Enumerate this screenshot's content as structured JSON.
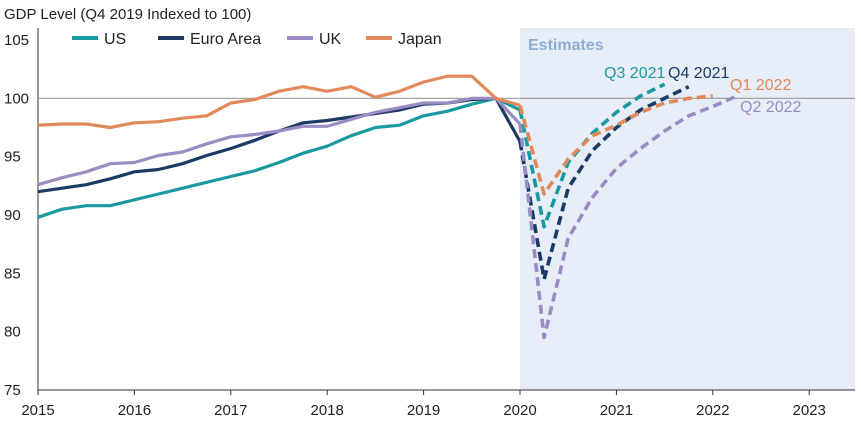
{
  "chart_data": {
    "type": "line",
    "ylabel": "GDP Level (Q4 2019 Indexed to 100)",
    "ylim": [
      75,
      105
    ],
    "yticks": [
      75,
      80,
      85,
      90,
      95,
      100,
      105
    ],
    "xlim": [
      2015,
      2023.5
    ],
    "xticks": [
      "2015",
      "2016",
      "2017",
      "2018",
      "2019",
      "2020",
      "2021",
      "2022",
      "2023"
    ],
    "reference_line": 100,
    "grid": false,
    "legend_position": "top-left",
    "shaded_region": {
      "label": "Estimates",
      "x_start": 2020,
      "x_end": 2023.5,
      "color": "#e6edf6",
      "label_color": "#8eb0d6"
    },
    "series": [
      {
        "name": "US",
        "color": "#1a9aa0",
        "historical": {
          "x": [
            2015.0,
            2015.25,
            2015.5,
            2015.75,
            2016.0,
            2016.25,
            2016.5,
            2016.75,
            2017.0,
            2017.25,
            2017.5,
            2017.75,
            2018.0,
            2018.25,
            2018.5,
            2018.75,
            2019.0,
            2019.25,
            2019.5,
            2019.75,
            2020.0
          ],
          "y": [
            89.8,
            90.5,
            90.8,
            90.8,
            91.3,
            91.8,
            92.3,
            92.8,
            93.3,
            93.8,
            94.5,
            95.3,
            95.9,
            96.8,
            97.5,
            97.7,
            98.5,
            98.9,
            99.5,
            100.0,
            99.0
          ]
        },
        "estimate": {
          "x": [
            2020.0,
            2020.25,
            2020.5,
            2020.75,
            2021.0,
            2021.25,
            2021.5
          ],
          "y": [
            99.0,
            89.0,
            94.5,
            97.0,
            98.8,
            100.2,
            101.2
          ]
        },
        "annotation": "Q3 2021"
      },
      {
        "name": "Euro Area",
        "color": "#1b3a64",
        "historical": {
          "x": [
            2015.0,
            2015.25,
            2015.5,
            2015.75,
            2016.0,
            2016.25,
            2016.5,
            2016.75,
            2017.0,
            2017.25,
            2017.5,
            2017.75,
            2018.0,
            2018.25,
            2018.5,
            2018.75,
            2019.0,
            2019.25,
            2019.5,
            2019.75,
            2020.0
          ],
          "y": [
            92.0,
            92.3,
            92.6,
            93.1,
            93.7,
            93.9,
            94.4,
            95.1,
            95.7,
            96.4,
            97.2,
            97.9,
            98.1,
            98.4,
            98.7,
            99.0,
            99.5,
            99.6,
            99.9,
            100.0,
            96.3
          ]
        },
        "estimate": {
          "x": [
            2020.0,
            2020.25,
            2020.5,
            2020.75,
            2021.0,
            2021.25,
            2021.5,
            2021.75
          ],
          "y": [
            96.3,
            84.5,
            92.3,
            95.5,
            97.5,
            99.0,
            100.0,
            101.0
          ]
        },
        "annotation": "Q4 2021"
      },
      {
        "name": "UK",
        "color": "#9b8cc4",
        "historical": {
          "x": [
            2015.0,
            2015.25,
            2015.5,
            2015.75,
            2016.0,
            2016.25,
            2016.5,
            2016.75,
            2017.0,
            2017.25,
            2017.5,
            2017.75,
            2018.0,
            2018.25,
            2018.5,
            2018.75,
            2019.0,
            2019.25,
            2019.5,
            2019.75,
            2020.0
          ],
          "y": [
            92.6,
            93.2,
            93.7,
            94.4,
            94.5,
            95.1,
            95.4,
            96.1,
            96.7,
            96.9,
            97.2,
            97.6,
            97.6,
            98.2,
            98.8,
            99.2,
            99.6,
            99.6,
            100.0,
            100.0,
            97.8
          ]
        },
        "estimate": {
          "x": [
            2020.0,
            2020.25,
            2020.5,
            2020.75,
            2021.0,
            2021.25,
            2021.5,
            2021.75,
            2022.0,
            2022.25
          ],
          "y": [
            97.8,
            79.5,
            88.0,
            91.5,
            94.0,
            95.7,
            97.2,
            98.5,
            99.3,
            100.2
          ]
        },
        "annotation": "Q2 2022"
      },
      {
        "name": "Japan",
        "color": "#e08a5c",
        "historical": {
          "x": [
            2015.0,
            2015.25,
            2015.5,
            2015.75,
            2016.0,
            2016.25,
            2016.5,
            2016.75,
            2017.0,
            2017.25,
            2017.5,
            2017.75,
            2018.0,
            2018.25,
            2018.5,
            2018.75,
            2019.0,
            2019.25,
            2019.5,
            2019.75,
            2020.0
          ],
          "y": [
            97.7,
            97.8,
            97.8,
            97.5,
            97.9,
            98.0,
            98.3,
            98.5,
            99.6,
            99.9,
            100.6,
            101.0,
            100.6,
            101.0,
            100.1,
            100.6,
            101.4,
            101.9,
            101.9,
            100.0,
            99.4
          ]
        },
        "estimate": {
          "x": [
            2020.0,
            2020.25,
            2020.5,
            2020.75,
            2021.0,
            2021.25,
            2021.5,
            2021.75,
            2022.0
          ],
          "y": [
            99.4,
            91.8,
            94.8,
            96.8,
            97.7,
            98.8,
            99.6,
            100.0,
            100.2
          ]
        },
        "annotation": "Q1 2022"
      }
    ]
  }
}
